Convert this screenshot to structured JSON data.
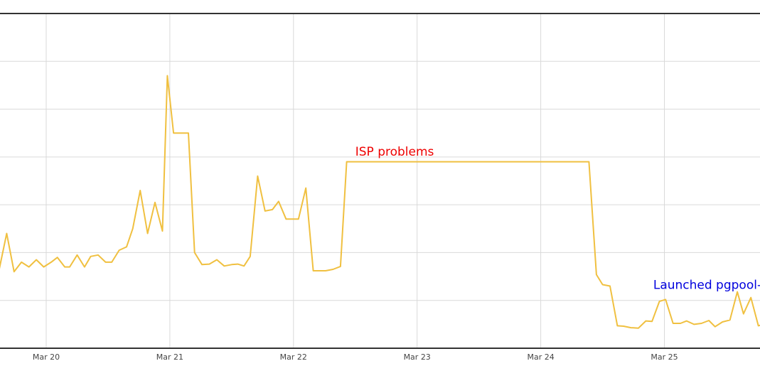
{
  "chart_data": {
    "type": "line",
    "title": "",
    "xlabel": "",
    "ylabel": "",
    "x_ticks": [
      "Mar 20",
      "Mar 21",
      "Mar 22",
      "Mar 23",
      "Mar 24",
      "Mar 25"
    ],
    "y_gridlines": 7,
    "ylim": [
      0,
      7
    ],
    "grid": true,
    "legend": "none",
    "series": [
      {
        "color": "#f0c040",
        "points": [
          [
            19.62,
            1.65
          ],
          [
            19.68,
            2.4
          ],
          [
            19.74,
            1.6
          ],
          [
            19.8,
            1.8
          ],
          [
            19.86,
            1.7
          ],
          [
            19.92,
            1.85
          ],
          [
            19.98,
            1.7
          ],
          [
            20.04,
            1.8
          ],
          [
            20.09,
            1.9
          ],
          [
            20.15,
            1.7
          ],
          [
            20.19,
            1.7
          ],
          [
            20.25,
            1.95
          ],
          [
            20.31,
            1.7
          ],
          [
            20.36,
            1.92
          ],
          [
            20.42,
            1.95
          ],
          [
            20.48,
            1.8
          ],
          [
            20.53,
            1.8
          ],
          [
            20.59,
            2.05
          ],
          [
            20.65,
            2.12
          ],
          [
            20.7,
            2.5
          ],
          [
            20.76,
            3.3
          ],
          [
            20.82,
            2.4
          ],
          [
            20.88,
            3.05
          ],
          [
            20.94,
            2.45
          ],
          [
            20.98,
            5.7
          ],
          [
            21.03,
            4.5
          ],
          [
            21.15,
            4.5
          ],
          [
            21.2,
            2.0
          ],
          [
            21.26,
            1.75
          ],
          [
            21.32,
            1.76
          ],
          [
            21.38,
            1.85
          ],
          [
            21.44,
            1.72
          ],
          [
            21.5,
            1.75
          ],
          [
            21.55,
            1.76
          ],
          [
            21.6,
            1.72
          ],
          [
            21.65,
            1.92
          ],
          [
            21.71,
            3.6
          ],
          [
            21.77,
            2.87
          ],
          [
            21.83,
            2.9
          ],
          [
            21.88,
            3.07
          ],
          [
            21.94,
            2.7
          ],
          [
            22.04,
            2.7
          ],
          [
            22.1,
            3.35
          ],
          [
            22.16,
            1.62
          ],
          [
            22.26,
            1.62
          ],
          [
            22.32,
            1.65
          ],
          [
            22.38,
            1.71
          ],
          [
            22.43,
            3.9
          ],
          [
            24.39,
            3.9
          ],
          [
            24.45,
            1.54
          ],
          [
            24.5,
            1.33
          ],
          [
            24.56,
            1.3
          ],
          [
            24.62,
            0.47
          ],
          [
            24.67,
            0.46
          ],
          [
            24.73,
            0.43
          ],
          [
            24.79,
            0.42
          ],
          [
            24.85,
            0.57
          ],
          [
            24.9,
            0.56
          ],
          [
            24.96,
            0.98
          ],
          [
            25.01,
            1.02
          ],
          [
            25.07,
            0.52
          ],
          [
            25.13,
            0.52
          ],
          [
            25.18,
            0.57
          ],
          [
            25.24,
            0.5
          ],
          [
            25.3,
            0.52
          ],
          [
            25.36,
            0.58
          ],
          [
            25.41,
            0.45
          ],
          [
            25.47,
            0.55
          ],
          [
            25.53,
            0.59
          ],
          [
            25.59,
            1.18
          ],
          [
            25.64,
            0.72
          ],
          [
            25.7,
            1.06
          ],
          [
            25.76,
            0.47
          ],
          [
            25.8,
            0.5
          ]
        ]
      }
    ],
    "annotations": [
      {
        "text": "ISP problems",
        "x": 22.5,
        "y": 4.03,
        "color": "#ee0000"
      },
      {
        "text": "Launched pgpool-II + memcached",
        "x": 24.91,
        "y": 1.24,
        "color": "#0000dd"
      }
    ]
  }
}
